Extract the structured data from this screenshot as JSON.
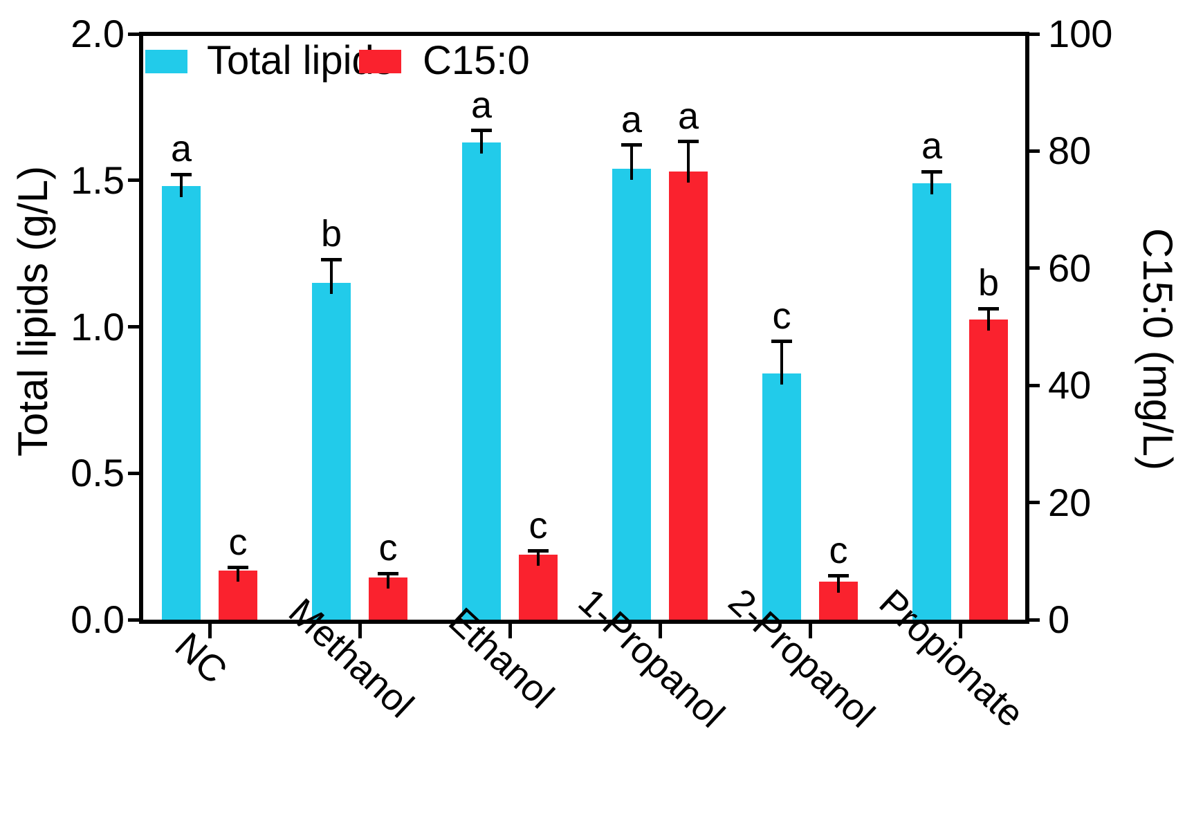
{
  "chart_data": {
    "type": "bar",
    "categories": [
      "NC",
      "Methanol",
      "Ethanol",
      "1-Propanol",
      "2-Propanol",
      "Propionate"
    ],
    "series": [
      {
        "name": "Total lipids",
        "axis": "left",
        "color": "#22CBEA",
        "values": [
          1.48,
          1.15,
          1.63,
          1.54,
          0.84,
          1.49
        ],
        "errors": [
          0.04,
          0.08,
          0.04,
          0.08,
          0.11,
          0.04
        ],
        "sig_letters": [
          "a",
          "b",
          "a",
          "a",
          "c",
          "a"
        ]
      },
      {
        "name": "C15:0",
        "axis": "right",
        "color": "#FA222E",
        "values": [
          8.4,
          7.2,
          11.1,
          76.5,
          6.5,
          51.3
        ],
        "errors": [
          0.5,
          0.7,
          0.6,
          5.1,
          1.0,
          1.8
        ],
        "sig_letters": [
          "c",
          "c",
          "c",
          "a",
          "c",
          "b"
        ]
      }
    ],
    "left_axis": {
      "label": "Total lipids (g/L)",
      "min": 0,
      "max": 2,
      "tick_values": [
        0,
        0.5,
        1,
        1.5,
        2
      ],
      "tick_labels": [
        "0.0",
        "0.5",
        "1.0",
        "1.5",
        "2.0"
      ]
    },
    "right_axis": {
      "label": "C15:0 (mg/L)",
      "min": 0,
      "max": 100,
      "tick_values": [
        0,
        20,
        40,
        60,
        80,
        100
      ],
      "tick_labels": [
        "0",
        "20",
        "40",
        "60",
        "80",
        "100"
      ]
    },
    "legend": {
      "position": "top-left-inside",
      "items": [
        {
          "label": "Total lipids",
          "color": "#22CBEA"
        },
        {
          "label": "C15:0",
          "color": "#FA222E"
        }
      ]
    },
    "grid": false,
    "error_bars": "upper",
    "annotation_style": "significance letters above error bars"
  }
}
